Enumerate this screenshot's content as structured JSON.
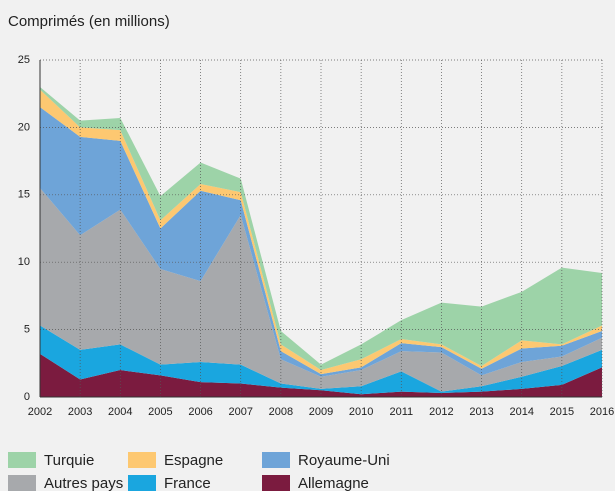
{
  "chart_data": {
    "type": "stacked_area",
    "title": "Comprimés (en millions)",
    "categories": [
      "2002",
      "2003",
      "2004",
      "2005",
      "2006",
      "2007",
      "2008",
      "2009",
      "2010",
      "2011",
      "2012",
      "2013",
      "2014",
      "2015",
      "2016"
    ],
    "series": [
      {
        "name": "Turquie",
        "color": "#9dd3a8",
        "values": [
          0.2,
          0.5,
          0.9,
          1.8,
          1.6,
          1.0,
          1.0,
          0.4,
          1.1,
          1.4,
          3.1,
          4.4,
          3.6,
          5.7,
          3.9
        ]
      },
      {
        "name": "Espagne",
        "color": "#fdc871",
        "values": [
          1.3,
          0.7,
          0.8,
          0.6,
          0.5,
          0.6,
          0.5,
          0.3,
          0.6,
          0.3,
          0.2,
          0.2,
          0.6,
          0.1,
          0.4
        ]
      },
      {
        "name": "Royaume-Uni",
        "color": "#6ea4d8",
        "values": [
          6.0,
          7.3,
          5.1,
          3.0,
          6.7,
          1.1,
          0.6,
          0.2,
          0.2,
          0.6,
          0.4,
          0.5,
          1.0,
          0.8,
          0.5
        ]
      },
      {
        "name": "Autres pays",
        "color": "#a7a9ac",
        "values": [
          10.2,
          8.5,
          10.0,
          7.1,
          6.0,
          11.1,
          1.8,
          0.9,
          1.2,
          1.5,
          2.9,
          0.8,
          1.1,
          0.7,
          0.9
        ]
      },
      {
        "name": "France",
        "color": "#1aa6df",
        "values": [
          2.1,
          2.2,
          1.9,
          0.8,
          1.5,
          1.4,
          0.3,
          0.1,
          0.6,
          1.5,
          0.1,
          0.4,
          0.9,
          1.4,
          1.3
        ]
      },
      {
        "name": "Allemagne",
        "color": "#7b1b3f",
        "values": [
          3.2,
          1.3,
          2.0,
          1.6,
          1.1,
          1.0,
          0.7,
          0.5,
          0.2,
          0.4,
          0.3,
          0.4,
          0.6,
          0.9,
          2.2
        ]
      }
    ],
    "ylim": [
      0,
      25
    ],
    "yticks": [
      0,
      5,
      10,
      15,
      20,
      25
    ],
    "grid": true,
    "legend": "bottom"
  }
}
